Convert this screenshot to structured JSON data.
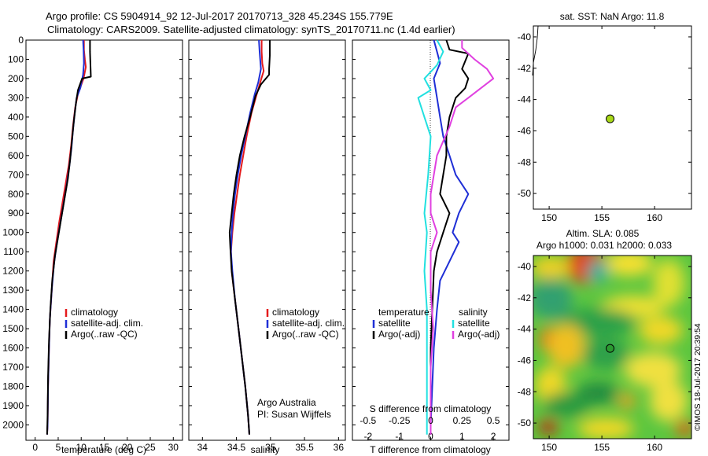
{
  "header": {
    "line1": "Argo profile: CS 5904914_92 12-Jul-2017 20170713_328 45.234S 155.779E",
    "line2": "Climatology: CARS2009. Satellite-adjusted climatology: synTS_20170711.nc (1.4d earlier)"
  },
  "credit": "©IMOS 18-Jul-2017 20:39:54",
  "colors": {
    "climatology": "#e41a1c",
    "satellite_adj": "#1f2fd6",
    "argo": "#000000",
    "temp_satellite": "#1f2fd6",
    "temp_argo": "#000000",
    "sal_satellite": "#22e0e0",
    "sal_argo": "#e040e0"
  },
  "chart_data": [
    {
      "id": "temperature",
      "type": "line",
      "xlabel": "temperature (deg C)",
      "ylabel": "",
      "xlim": [
        -2,
        32
      ],
      "ylim": [
        2080,
        0
      ],
      "xticks": [
        0,
        5,
        10,
        15,
        20,
        25,
        30
      ],
      "yticks": [
        0,
        100,
        200,
        300,
        400,
        500,
        600,
        700,
        800,
        900,
        1000,
        1100,
        1200,
        1300,
        1400,
        1500,
        1600,
        1700,
        1800,
        1900,
        2000
      ],
      "legend": {
        "position": "lower-center",
        "entries": [
          "climatology",
          "satellite-adj. clim.",
          "Argo(..raw -QC)"
        ]
      },
      "series": [
        {
          "name": "climatology",
          "color": "#e41a1c",
          "points": [
            [
              10.6,
              0
            ],
            [
              10.6,
              50
            ],
            [
              10.8,
              100
            ],
            [
              11.0,
              140
            ],
            [
              10.5,
              200
            ],
            [
              9.3,
              280
            ],
            [
              8.7,
              350
            ],
            [
              8.2,
              450
            ],
            [
              7.8,
              550
            ],
            [
              7.3,
              650
            ],
            [
              6.6,
              750
            ],
            [
              5.9,
              850
            ],
            [
              5.2,
              950
            ],
            [
              4.6,
              1050
            ],
            [
              4.0,
              1150
            ],
            [
              3.6,
              1300
            ],
            [
              3.2,
              1450
            ],
            [
              3.0,
              1600
            ],
            [
              2.8,
              1800
            ],
            [
              2.7,
              2000
            ],
            [
              2.6,
              2050
            ]
          ]
        },
        {
          "name": "satellite-adj. clim.",
          "color": "#1f2fd6",
          "points": [
            [
              10.4,
              0
            ],
            [
              10.5,
              50
            ],
            [
              10.6,
              120
            ],
            [
              10.4,
              180
            ],
            [
              9.8,
              250
            ],
            [
              9.0,
              300
            ],
            [
              8.6,
              380
            ],
            [
              8.2,
              470
            ],
            [
              7.9,
              560
            ],
            [
              7.4,
              660
            ],
            [
              6.8,
              760
            ],
            [
              6.1,
              860
            ],
            [
              5.4,
              960
            ],
            [
              4.7,
              1060
            ],
            [
              4.1,
              1160
            ],
            [
              3.6,
              1300
            ],
            [
              3.2,
              1450
            ],
            [
              3.0,
              1600
            ],
            [
              2.8,
              1800
            ],
            [
              2.7,
              2000
            ],
            [
              2.6,
              2050
            ]
          ]
        },
        {
          "name": "Argo(..raw -QC)",
          "color": "#000000",
          "points": [
            [
              11.9,
              0
            ],
            [
              11.9,
              60
            ],
            [
              12.0,
              120
            ],
            [
              12.1,
              190
            ],
            [
              10.2,
              200
            ],
            [
              9.3,
              260
            ],
            [
              8.9,
              320
            ],
            [
              8.4,
              420
            ],
            [
              8.0,
              520
            ],
            [
              7.6,
              620
            ],
            [
              7.1,
              720
            ],
            [
              6.4,
              820
            ],
            [
              5.7,
              920
            ],
            [
              5.0,
              1020
            ],
            [
              4.3,
              1120
            ],
            [
              3.7,
              1250
            ],
            [
              3.3,
              1400
            ],
            [
              3.0,
              1560
            ],
            [
              2.8,
              1750
            ],
            [
              2.7,
              1950
            ],
            [
              2.6,
              2050
            ]
          ]
        }
      ]
    },
    {
      "id": "salinity",
      "type": "line",
      "xlabel": "salinity",
      "ylabel": "",
      "xlim": [
        33.8,
        36.1
      ],
      "ylim": [
        2080,
        0
      ],
      "xticks": [
        34,
        34.5,
        35,
        35.5,
        36
      ],
      "xtick_labels": [
        "34",
        "34.5",
        "35",
        "35.5",
        "36"
      ],
      "legend": {
        "position": "lower-right",
        "entries": [
          "climatology",
          "satellite-adj. clim.",
          "Argo(..raw -QC)"
        ]
      },
      "annotation": [
        "Argo Australia",
        "PI: Susan Wijffels"
      ],
      "series": [
        {
          "name": "climatology",
          "color": "#e41a1c",
          "points": [
            [
              34.87,
              0
            ],
            [
              34.87,
              60
            ],
            [
              34.88,
              120
            ],
            [
              34.9,
              160
            ],
            [
              34.85,
              220
            ],
            [
              34.8,
              280
            ],
            [
              34.72,
              380
            ],
            [
              34.65,
              500
            ],
            [
              34.6,
              600
            ],
            [
              34.55,
              700
            ],
            [
              34.51,
              800
            ],
            [
              34.47,
              900
            ],
            [
              34.44,
              1000
            ],
            [
              34.42,
              1100
            ],
            [
              34.43,
              1200
            ],
            [
              34.48,
              1350
            ],
            [
              34.53,
              1500
            ],
            [
              34.58,
              1650
            ],
            [
              34.63,
              1800
            ],
            [
              34.67,
              1950
            ],
            [
              34.69,
              2050
            ]
          ]
        },
        {
          "name": "satellite-adj. clim.",
          "color": "#1f2fd6",
          "points": [
            [
              34.83,
              0
            ],
            [
              34.84,
              60
            ],
            [
              34.86,
              150
            ],
            [
              34.82,
              220
            ],
            [
              34.77,
              280
            ],
            [
              34.7,
              380
            ],
            [
              34.63,
              500
            ],
            [
              34.57,
              600
            ],
            [
              34.52,
              700
            ],
            [
              34.48,
              800
            ],
            [
              34.45,
              900
            ],
            [
              34.43,
              1000
            ],
            [
              34.42,
              1100
            ],
            [
              34.44,
              1200
            ],
            [
              34.48,
              1350
            ],
            [
              34.53,
              1500
            ],
            [
              34.58,
              1650
            ],
            [
              34.63,
              1800
            ],
            [
              34.67,
              1950
            ],
            [
              34.69,
              2050
            ]
          ]
        },
        {
          "name": "Argo(..raw -QC)",
          "color": "#000000",
          "points": [
            [
              34.99,
              0
            ],
            [
              34.99,
              80
            ],
            [
              34.98,
              150
            ],
            [
              34.98,
              180
            ],
            [
              34.86,
              230
            ],
            [
              34.78,
              290
            ],
            [
              34.7,
              400
            ],
            [
              34.62,
              500
            ],
            [
              34.55,
              600
            ],
            [
              34.5,
              700
            ],
            [
              34.46,
              800
            ],
            [
              34.43,
              900
            ],
            [
              34.4,
              1000
            ],
            [
              34.41,
              1080
            ],
            [
              34.43,
              1200
            ],
            [
              34.48,
              1350
            ],
            [
              34.53,
              1500
            ],
            [
              34.58,
              1650
            ],
            [
              34.63,
              1800
            ],
            [
              34.67,
              1950
            ],
            [
              34.69,
              2050
            ]
          ]
        }
      ]
    },
    {
      "id": "difference",
      "type": "line",
      "xlabel": "T difference from climatology",
      "xlabel_top": "S difference from climatology",
      "xlim": [
        -2.5,
        2.5
      ],
      "ylim": [
        2080,
        0
      ],
      "xticks": [
        -2,
        -1,
        0,
        1,
        2
      ],
      "xticks_top": [
        -0.5,
        -0.25,
        0,
        0.25,
        0.5
      ],
      "xtick_labels_top": [
        "-0.5",
        "-0.25",
        "0",
        "0.25",
        "0.5"
      ],
      "legend": {
        "position": "lower-center",
        "temperature_title": "temperature",
        "salinity_title": "salinity",
        "temperature_entries": [
          "satellite",
          "Argo(-adj)"
        ],
        "salinity_entries": [
          "satellite",
          "Argo(-adj)"
        ]
      },
      "series": [
        {
          "name": "temperature satellite",
          "color": "#1f2fd6",
          "points": [
            [
              0.1,
              0
            ],
            [
              0.2,
              60
            ],
            [
              0.3,
              120
            ],
            [
              0.1,
              200
            ],
            [
              0.2,
              300
            ],
            [
              0.3,
              400
            ],
            [
              0.4,
              500
            ],
            [
              0.6,
              600
            ],
            [
              0.8,
              700
            ],
            [
              1.2,
              800
            ],
            [
              0.9,
              900
            ],
            [
              0.7,
              1000
            ],
            [
              0.9,
              1050
            ],
            [
              0.6,
              1150
            ],
            [
              0.3,
              1250
            ],
            [
              0.2,
              1400
            ],
            [
              0.1,
              1600
            ],
            [
              0.05,
              1800
            ],
            [
              0.0,
              2000
            ],
            [
              0.0,
              2050
            ]
          ]
        },
        {
          "name": "temperature Argo(-adj)",
          "color": "#000000",
          "points": [
            [
              0.5,
              0
            ],
            [
              0.6,
              50
            ],
            [
              1.2,
              70
            ],
            [
              1.0,
              150
            ],
            [
              1.2,
              200
            ],
            [
              1.1,
              250
            ],
            [
              0.8,
              300
            ],
            [
              0.6,
              400
            ],
            [
              0.5,
              500
            ],
            [
              0.5,
              600
            ],
            [
              0.4,
              700
            ],
            [
              0.3,
              800
            ],
            [
              0.6,
              900
            ],
            [
              0.4,
              1000
            ],
            [
              0.2,
              1100
            ],
            [
              0.1,
              1200
            ],
            [
              0.05,
              1400
            ],
            [
              0.0,
              1600
            ],
            [
              0.0,
              1800
            ],
            [
              0.0,
              2000
            ],
            [
              0.0,
              2050
            ]
          ]
        },
        {
          "name": "salinity satellite",
          "color": "#22e0e0",
          "points": [
            [
              0.05,
              0
            ],
            [
              0.1,
              60
            ],
            [
              0.05,
              130
            ],
            [
              -0.05,
              200
            ],
            [
              0.0,
              260
            ],
            [
              -0.1,
              300
            ],
            [
              -0.05,
              400
            ],
            [
              0.0,
              500
            ],
            [
              -0.02,
              700
            ],
            [
              -0.05,
              900
            ],
            [
              -0.03,
              1000
            ],
            [
              -0.05,
              1200
            ],
            [
              -0.03,
              1400
            ],
            [
              -0.03,
              1600
            ],
            [
              -0.03,
              1800
            ],
            [
              -0.03,
              1900
            ],
            [
              -0.03,
              2050
            ]
          ]
        },
        {
          "name": "salinity Argo(-adj)",
          "color": "#e040e0",
          "points": [
            [
              0.25,
              0
            ],
            [
              0.25,
              40
            ],
            [
              0.35,
              100
            ],
            [
              0.45,
              150
            ],
            [
              0.5,
              200
            ],
            [
              0.4,
              250
            ],
            [
              0.3,
              300
            ],
            [
              0.2,
              350
            ],
            [
              0.15,
              450
            ],
            [
              0.05,
              600
            ],
            [
              0.0,
              800
            ],
            [
              0.0,
              900
            ],
            [
              0.05,
              1000
            ],
            [
              0.0,
              1100
            ],
            [
              0.0,
              1300
            ],
            [
              0.02,
              1500
            ],
            [
              0.0,
              1700
            ],
            [
              0.0,
              1900
            ],
            [
              0.0,
              2050
            ]
          ]
        }
      ]
    },
    {
      "id": "sst_map",
      "type": "scatter",
      "title": "sat. SST: NaN Argo: 11.8",
      "xlim": [
        148.5,
        163.5
      ],
      "ylim": [
        -51,
        -39.3
      ],
      "xticks": [
        150,
        155,
        160
      ],
      "yticks": [
        -40,
        -42,
        -44,
        -46,
        -48,
        -50
      ],
      "points": [
        {
          "x": 155.779,
          "y": -45.234
        }
      ]
    },
    {
      "id": "sla_map",
      "type": "heatmap",
      "title": "Altim. SLA: 0.085",
      "subtitle": "Argo h1000: 0.031 h2000: 0.033",
      "xlim": [
        148.5,
        163.5
      ],
      "ylim": [
        -51,
        -39.3
      ],
      "xticks": [
        150,
        155,
        160
      ],
      "yticks": [
        -40,
        -42,
        -44,
        -46,
        -48,
        -50
      ],
      "points": [
        {
          "x": 155.779,
          "y": -45.234
        }
      ]
    }
  ]
}
